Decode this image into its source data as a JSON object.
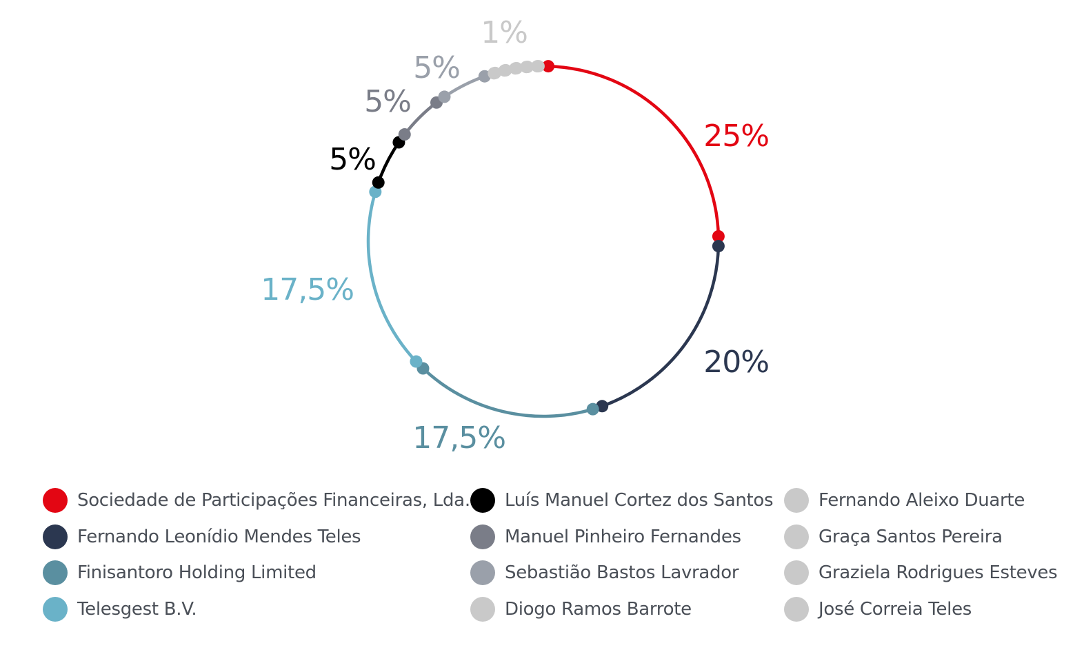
{
  "chart_data": {
    "type": "pie",
    "style": "ring-with-dot-markers",
    "slices": [
      {
        "label": "Sociedade de Participações Financeiras, Lda.",
        "value": 25,
        "display": "25%",
        "color": "#e30613"
      },
      {
        "label": "Fernando Leonídio Mendes Teles",
        "value": 20,
        "display": "20%",
        "color": "#2b3750"
      },
      {
        "label": "Finisantoro Holding Limited",
        "value": 17.5,
        "display": "17,5%",
        "color": "#5a8fa0"
      },
      {
        "label": "Telesgest B.V.",
        "value": 17.5,
        "display": "17,5%",
        "color": "#6ab2c8"
      },
      {
        "label": "Luís Manuel Cortez dos Santos",
        "value": 5,
        "display": "5%",
        "color": "#000000"
      },
      {
        "label": "Manuel Pinheiro Fernandes",
        "value": 5,
        "display": "5%",
        "color": "#7a7d88"
      },
      {
        "label": "Sebastião Bastos Lavrador",
        "value": 5,
        "display": "5%",
        "color": "#9aa0aa"
      },
      {
        "label": "Diogo Ramos Barrote",
        "value": 1,
        "display": "1%",
        "color": "#c9c9c9"
      },
      {
        "label": "Fernando Aleixo Duarte",
        "value": 1,
        "display": "",
        "color": "#c9c9c9"
      },
      {
        "label": "Graça Santos Pereira",
        "value": 1,
        "display": "",
        "color": "#c9c9c9"
      },
      {
        "label": "Graziela Rodrigues Esteves",
        "value": 1,
        "display": "",
        "color": "#c9c9c9"
      },
      {
        "label": "José Correia Teles",
        "value": 1,
        "display": "",
        "color": "#c9c9c9"
      }
    ]
  },
  "legend": {
    "columns": [
      [
        {
          "label": "Sociedade de Participações Financeiras, Lda.",
          "color": "#e30613"
        },
        {
          "label": "Fernando Leonídio Mendes Teles",
          "color": "#2b3750"
        },
        {
          "label": "Finisantoro Holding Limited",
          "color": "#5a8fa0"
        },
        {
          "label": "Telesgest B.V.",
          "color": "#6ab2c8"
        }
      ],
      [
        {
          "label": "Luís Manuel Cortez dos Santos",
          "color": "#000000"
        },
        {
          "label": "Manuel Pinheiro Fernandes",
          "color": "#7a7d88"
        },
        {
          "label": "Sebastião Bastos Lavrador",
          "color": "#9aa0aa"
        },
        {
          "label": "Diogo Ramos Barrote",
          "color": "#c9c9c9"
        }
      ],
      [
        {
          "label": "Fernando Aleixo Duarte",
          "color": "#c9c9c9"
        },
        {
          "label": "Graça Santos Pereira",
          "color": "#c9c9c9"
        },
        {
          "label": "Graziela Rodrigues Esteves",
          "color": "#c9c9c9"
        },
        {
          "label": "José Correia Teles",
          "color": "#c9c9c9"
        }
      ]
    ]
  }
}
